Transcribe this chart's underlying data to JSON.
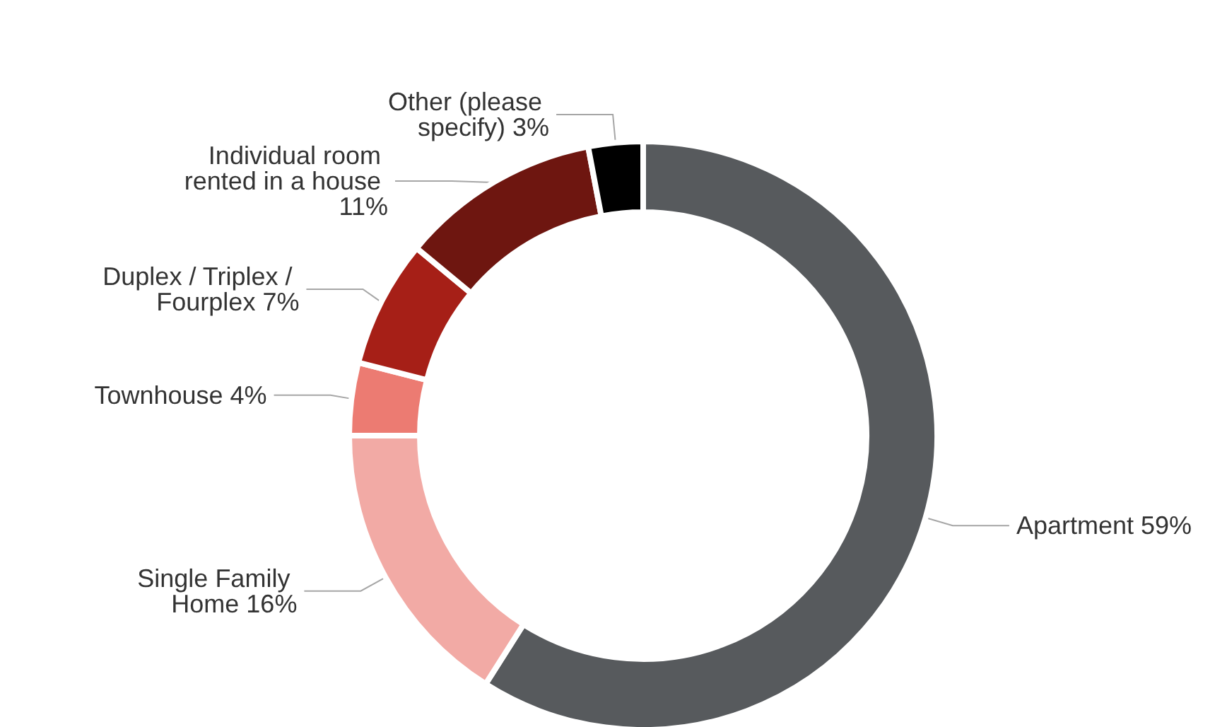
{
  "chart_data": {
    "type": "donut",
    "categories": [
      "Apartment",
      "Single Family Home",
      "Townhouse",
      "Duplex / Triplex / Fourplex",
      "Individual room rented in a house",
      "Other (please specify)"
    ],
    "values": [
      59,
      16,
      4,
      7,
      11,
      3
    ],
    "colors": [
      "#575a5d",
      "#f2aaa5",
      "#ec7b72",
      "#a61f17",
      "#6e1610",
      "#000000"
    ],
    "value_labels": [
      "59%",
      "16%",
      "4%",
      "7%",
      "11%",
      "3%"
    ],
    "legend": false
  }
}
